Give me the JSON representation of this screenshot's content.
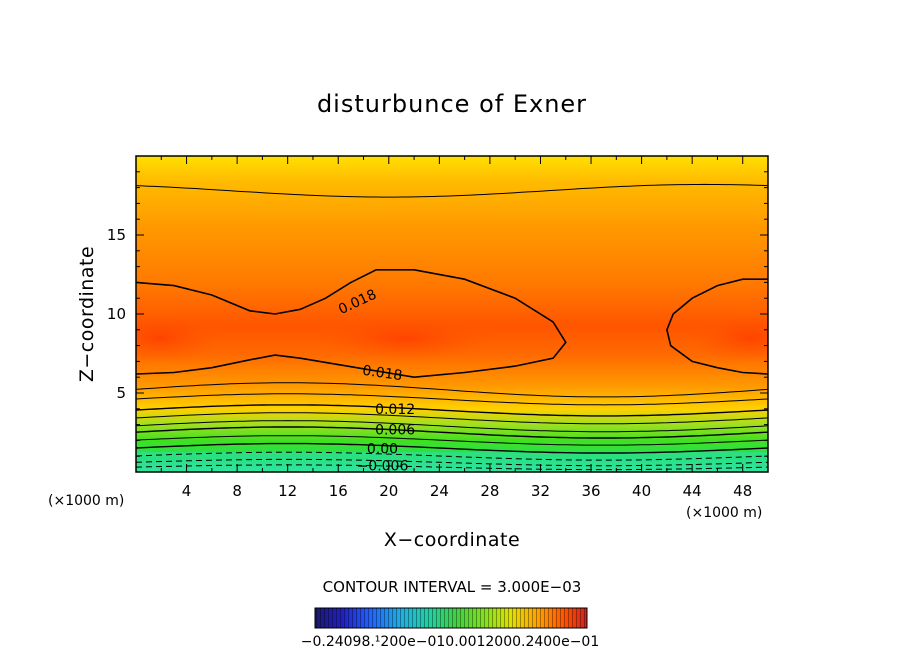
{
  "chart_data": {
    "type": "contour",
    "title": "disturbunce of Exner",
    "xlabel": "X−coordinate",
    "ylabel": "Z−coordinate",
    "x_unit": "(×1000 m)",
    "y_unit": "(×1000 m)",
    "xlim": [
      0,
      50
    ],
    "ylim": [
      0,
      20
    ],
    "x_ticks": [
      4,
      8,
      12,
      16,
      20,
      24,
      28,
      32,
      36,
      40,
      44,
      48
    ],
    "y_ticks": [
      5,
      10,
      15
    ],
    "contour_interval_label": "CONTOUR INTERVAL = 3.000E−03",
    "contour_interval": 0.003,
    "contour_labels": [
      {
        "text": "0.018",
        "x": 17.5,
        "z": 10.8
      },
      {
        "text": "0.018",
        "x": 19.5,
        "z": 6.3
      },
      {
        "text": "0.012",
        "x": 20.5,
        "z": 4.0
      },
      {
        "text": "0.006",
        "x": 20.5,
        "z": 2.7
      },
      {
        "text": "0.00",
        "x": 19.5,
        "z": 1.5
      },
      {
        "text": "−0.006",
        "x": 19.5,
        "z": 0.4
      }
    ],
    "colorbar_labels": "−0.24098.¹200e−010.0012000.2400e−01",
    "colors": {
      "colormap": [
        "#1a1a6e",
        "#2020c0",
        "#2080ff",
        "#20d0d0",
        "#20e080",
        "#40e020",
        "#a0e020",
        "#ffe000",
        "#ff9800",
        "#ff4000",
        "#d02020"
      ],
      "background": "#ffffff",
      "line": "#000000"
    }
  }
}
